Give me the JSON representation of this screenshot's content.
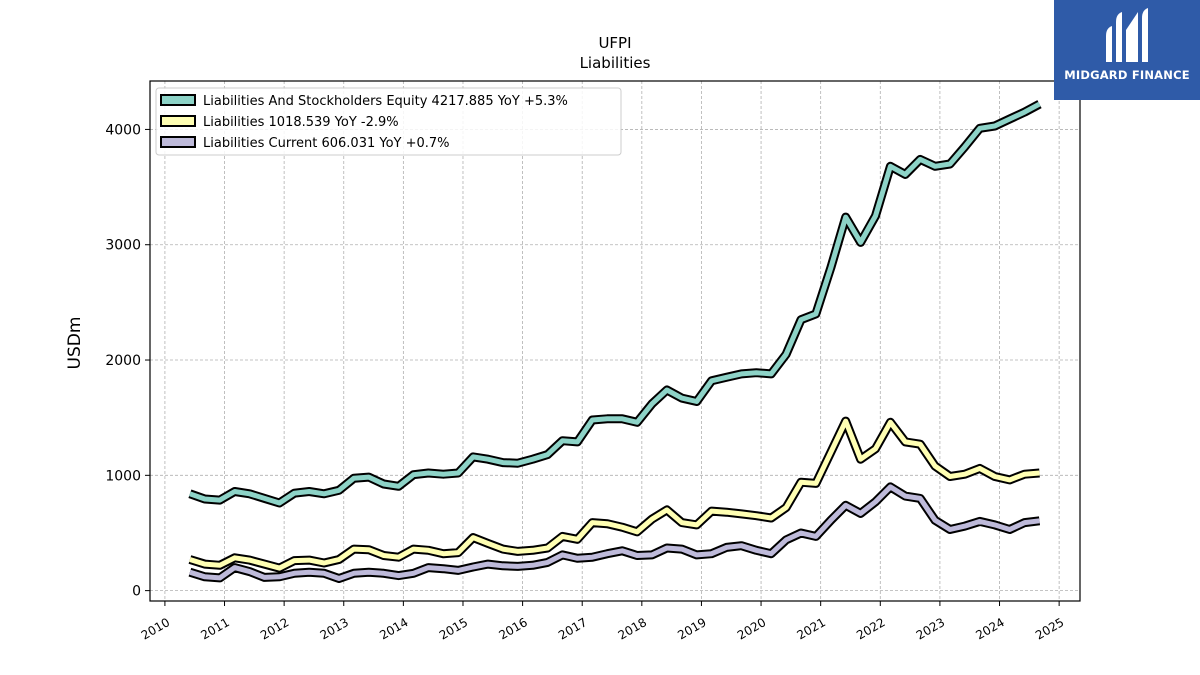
{
  "logo": {
    "text": "MIDGARD FINANCE",
    "color": "#2f5ba8"
  },
  "chart_data": {
    "type": "line",
    "title": "UFPI",
    "subtitle": "Liabilities",
    "xlabel": "",
    "ylabel": "USDm",
    "xlim": [
      2009.75,
      2025.35
    ],
    "ylim": [
      -90,
      4420
    ],
    "x_ticks": [
      2010,
      2011,
      2012,
      2013,
      2014,
      2015,
      2016,
      2017,
      2018,
      2019,
      2020,
      2021,
      2022,
      2023,
      2024,
      2025
    ],
    "y_ticks": [
      0,
      1000,
      2000,
      3000,
      4000
    ],
    "grid": true,
    "legend_position": "top-left",
    "series": [
      {
        "name": "Liabilities And Stockholders Equity",
        "legend_label": "Liabilities And Stockholders Equity  4217.885 YoY +5.3%",
        "color": "#8dd3c7",
        "x": [
          2010.42,
          2010.67,
          2010.92,
          2011.17,
          2011.42,
          2011.67,
          2011.92,
          2012.17,
          2012.42,
          2012.67,
          2012.92,
          2013.17,
          2013.42,
          2013.67,
          2013.92,
          2014.17,
          2014.42,
          2014.67,
          2014.92,
          2015.17,
          2015.42,
          2015.67,
          2015.92,
          2016.17,
          2016.42,
          2016.67,
          2016.92,
          2017.17,
          2017.42,
          2017.67,
          2017.92,
          2018.17,
          2018.42,
          2018.67,
          2018.92,
          2019.17,
          2019.42,
          2019.67,
          2019.92,
          2020.17,
          2020.42,
          2020.67,
          2020.92,
          2021.17,
          2021.42,
          2021.67,
          2021.92,
          2022.17,
          2022.42,
          2022.67,
          2022.92,
          2023.17,
          2023.42,
          2023.67,
          2023.92,
          2024.17,
          2024.42,
          2024.67
        ],
        "values": [
          840,
          795,
          785,
          860,
          840,
          800,
          760,
          845,
          860,
          840,
          870,
          975,
          985,
          925,
          905,
          1005,
          1020,
          1010,
          1020,
          1160,
          1140,
          1110,
          1105,
          1140,
          1180,
          1300,
          1290,
          1480,
          1490,
          1490,
          1460,
          1620,
          1740,
          1670,
          1640,
          1820,
          1850,
          1880,
          1890,
          1880,
          2050,
          2350,
          2400,
          2800,
          3240,
          3020,
          3250,
          3680,
          3610,
          3740,
          3680,
          3700,
          3850,
          4010,
          4030,
          4090,
          4150,
          4220
        ]
      },
      {
        "name": "Liabilities",
        "legend_label": "Liabilities  1018.539 YoY -2.9%",
        "color": "#ffffb3",
        "x": [
          2010.42,
          2010.67,
          2010.92,
          2011.17,
          2011.42,
          2011.67,
          2011.92,
          2012.17,
          2012.42,
          2012.67,
          2012.92,
          2013.17,
          2013.42,
          2013.67,
          2013.92,
          2014.17,
          2014.42,
          2014.67,
          2014.92,
          2015.17,
          2015.42,
          2015.67,
          2015.92,
          2016.17,
          2016.42,
          2016.67,
          2016.92,
          2017.17,
          2017.42,
          2017.67,
          2017.92,
          2018.17,
          2018.42,
          2018.67,
          2018.92,
          2019.17,
          2019.42,
          2019.67,
          2019.92,
          2020.17,
          2020.42,
          2020.67,
          2020.92,
          2021.17,
          2021.42,
          2021.67,
          2021.92,
          2022.17,
          2022.42,
          2022.67,
          2022.92,
          2023.17,
          2023.42,
          2023.67,
          2023.92,
          2024.17,
          2024.42,
          2024.67
        ],
        "values": [
          270,
          230,
          220,
          285,
          265,
          230,
          195,
          260,
          265,
          240,
          270,
          360,
          355,
          305,
          290,
          360,
          350,
          320,
          330,
          460,
          410,
          360,
          340,
          350,
          370,
          470,
          445,
          590,
          580,
          550,
          510,
          620,
          700,
          590,
          570,
          690,
          680,
          665,
          650,
          630,
          720,
          940,
          930,
          1200,
          1470,
          1140,
          1230,
          1460,
          1290,
          1270,
          1080,
          990,
          1010,
          1060,
          990,
          960,
          1010,
          1020
        ]
      },
      {
        "name": "Liabilities Current",
        "legend_label": "Liabilities Current  606.031 YoY +0.7%",
        "color": "#bebada",
        "x": [
          2010.42,
          2010.67,
          2010.92,
          2011.17,
          2011.42,
          2011.67,
          2011.92,
          2012.17,
          2012.42,
          2012.67,
          2012.92,
          2013.17,
          2013.42,
          2013.67,
          2013.92,
          2014.17,
          2014.42,
          2014.67,
          2014.92,
          2015.17,
          2015.42,
          2015.67,
          2015.92,
          2016.17,
          2016.42,
          2016.67,
          2016.92,
          2017.17,
          2017.42,
          2017.67,
          2017.92,
          2018.17,
          2018.42,
          2018.67,
          2018.92,
          2019.17,
          2019.42,
          2019.67,
          2019.92,
          2020.17,
          2020.42,
          2020.67,
          2020.92,
          2021.17,
          2021.42,
          2021.67,
          2021.92,
          2022.17,
          2022.42,
          2022.67,
          2022.92,
          2023.17,
          2023.42,
          2023.67,
          2023.92,
          2024.17,
          2024.42,
          2024.67
        ],
        "values": [
          160,
          120,
          110,
          200,
          165,
          115,
          120,
          150,
          160,
          150,
          105,
          150,
          160,
          150,
          130,
          150,
          200,
          190,
          175,
          205,
          230,
          215,
          210,
          220,
          245,
          310,
          280,
          290,
          320,
          345,
          305,
          310,
          370,
          360,
          310,
          320,
          375,
          390,
          350,
          320,
          440,
          500,
          470,
          610,
          740,
          670,
          770,
          900,
          820,
          800,
          610,
          530,
          560,
          600,
          570,
          530,
          590,
          606
        ]
      }
    ]
  }
}
